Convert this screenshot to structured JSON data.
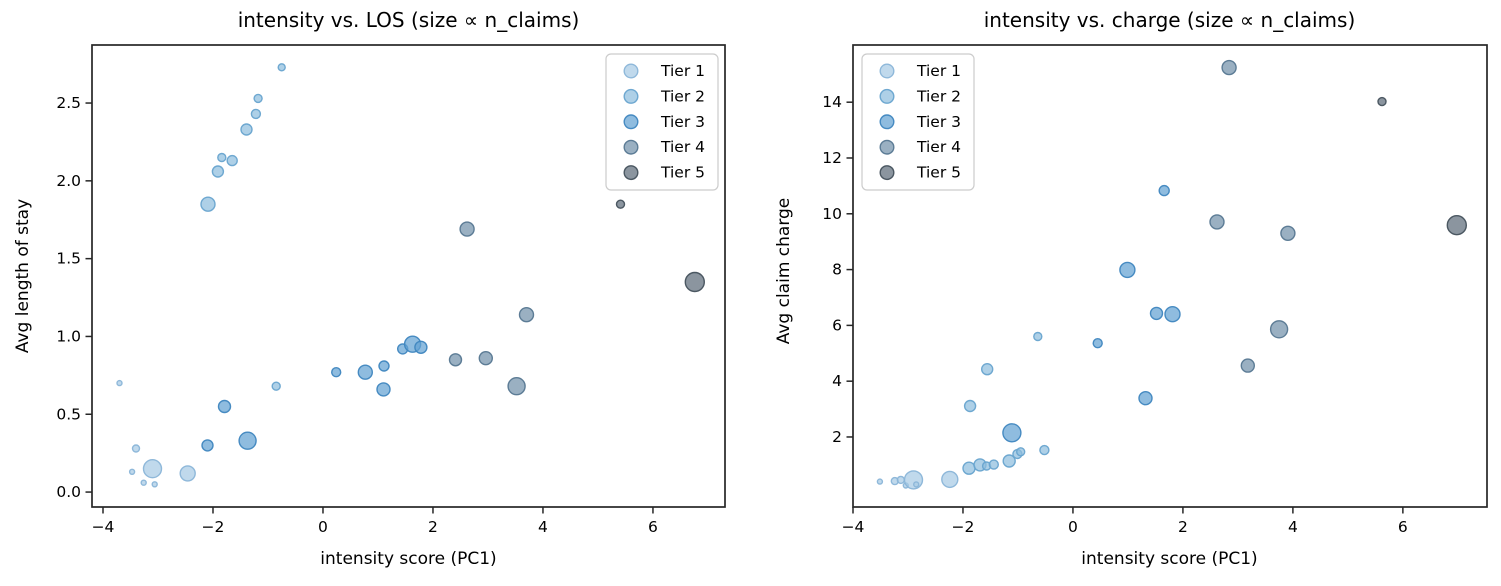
{
  "figure": {
    "background": "#ffffff",
    "text_color": "#000000",
    "spine_color": "#262626"
  },
  "tiers": {
    "1": {
      "label": "Tier 1",
      "fill": "#a8cbe5",
      "edge": "#8ab5d8"
    },
    "2": {
      "label": "Tier 2",
      "fill": "#8fbede",
      "edge": "#68a4cf"
    },
    "3": {
      "label": "Tier 3",
      "fill": "#64a2d2",
      "edge": "#3f86bf"
    },
    "4": {
      "label": "Tier 4",
      "fill": "#7392ab",
      "edge": "#567791"
    },
    "5": {
      "label": "Tier 5",
      "fill": "#5e6c7a",
      "edge": "#45515c"
    }
  },
  "chart_data": [
    {
      "type": "scatter",
      "title": "intensity vs. LOS (size ∝ n_claims)",
      "xlabel": "intensity score (PC1)",
      "ylabel": "Avg length of stay",
      "xlim": [
        -4.2,
        7.31
      ],
      "ylim": [
        -0.096,
        2.873
      ],
      "xticks": [
        -4,
        -2,
        0,
        2,
        4,
        6
      ],
      "xtick_labels": [
        "−4",
        "−2",
        "0",
        "2",
        "4",
        "6"
      ],
      "yticks": [
        0,
        0.5,
        1,
        1.5,
        2,
        2.5
      ],
      "ytick_labels": [
        "0.0",
        "0.5",
        "1.0",
        "1.5",
        "2.0",
        "2.5"
      ],
      "grid": false,
      "legend": {
        "position": "top-right",
        "entries": [
          "Tier 1",
          "Tier 2",
          "Tier 3",
          "Tier 4",
          "Tier 5"
        ]
      },
      "size_encoding": "size ∝ n_claims",
      "points": [
        {
          "x": -3.7,
          "y": 0.7,
          "r": 2.5,
          "tier": 1
        },
        {
          "x": -3.4,
          "y": 0.28,
          "r": 3.5,
          "tier": 1
        },
        {
          "x": -3.47,
          "y": 0.13,
          "r": 2.5,
          "tier": 1
        },
        {
          "x": -3.26,
          "y": 0.06,
          "r": 2.5,
          "tier": 1
        },
        {
          "x": -3.06,
          "y": 0.05,
          "r": 2.5,
          "tier": 1
        },
        {
          "x": -3.1,
          "y": 0.15,
          "r": 9.0,
          "tier": 1
        },
        {
          "x": -2.46,
          "y": 0.12,
          "r": 7.5,
          "tier": 1
        },
        {
          "x": -2.09,
          "y": 1.85,
          "r": 7.0,
          "tier": 2
        },
        {
          "x": -1.91,
          "y": 2.06,
          "r": 5.5,
          "tier": 2
        },
        {
          "x": -1.84,
          "y": 2.15,
          "r": 4.0,
          "tier": 2
        },
        {
          "x": -1.65,
          "y": 2.13,
          "r": 5.0,
          "tier": 2
        },
        {
          "x": -1.39,
          "y": 2.33,
          "r": 5.5,
          "tier": 2
        },
        {
          "x": -1.22,
          "y": 2.43,
          "r": 4.5,
          "tier": 2
        },
        {
          "x": -1.18,
          "y": 2.53,
          "r": 4.0,
          "tier": 2
        },
        {
          "x": -0.75,
          "y": 2.73,
          "r": 3.5,
          "tier": 2
        },
        {
          "x": -0.85,
          "y": 0.68,
          "r": 4.0,
          "tier": 2
        },
        {
          "x": -2.1,
          "y": 0.3,
          "r": 5.5,
          "tier": 3
        },
        {
          "x": -1.79,
          "y": 0.55,
          "r": 6.0,
          "tier": 3
        },
        {
          "x": -1.37,
          "y": 0.33,
          "r": 8.5,
          "tier": 3
        },
        {
          "x": 0.24,
          "y": 0.77,
          "r": 4.5,
          "tier": 3
        },
        {
          "x": 0.77,
          "y": 0.77,
          "r": 7.0,
          "tier": 3
        },
        {
          "x": 1.1,
          "y": 0.66,
          "r": 6.5,
          "tier": 3
        },
        {
          "x": 1.11,
          "y": 0.81,
          "r": 5.0,
          "tier": 3
        },
        {
          "x": 1.45,
          "y": 0.92,
          "r": 5.0,
          "tier": 3
        },
        {
          "x": 1.63,
          "y": 0.95,
          "r": 8.0,
          "tier": 3
        },
        {
          "x": 1.78,
          "y": 0.93,
          "r": 6.0,
          "tier": 3
        },
        {
          "x": 2.41,
          "y": 0.85,
          "r": 6.0,
          "tier": 4
        },
        {
          "x": 2.96,
          "y": 0.86,
          "r": 6.5,
          "tier": 4
        },
        {
          "x": 3.52,
          "y": 0.68,
          "r": 8.5,
          "tier": 4
        },
        {
          "x": 2.62,
          "y": 1.69,
          "r": 7.0,
          "tier": 4
        },
        {
          "x": 3.7,
          "y": 1.14,
          "r": 7.0,
          "tier": 4
        },
        {
          "x": 5.41,
          "y": 1.85,
          "r": 4.0,
          "tier": 5
        },
        {
          "x": 6.76,
          "y": 1.35,
          "r": 9.5,
          "tier": 5
        }
      ]
    },
    {
      "type": "scatter",
      "title": "intensity vs. charge (size ∝ n_claims)",
      "xlabel": "intensity score (PC1)",
      "ylabel": "Avg claim charge",
      "xlim": [
        -4.0,
        7.53
      ],
      "ylim": [
        -0.51,
        16.05
      ],
      "xticks": [
        -4,
        -2,
        0,
        2,
        4,
        6
      ],
      "xtick_labels": [
        "−4",
        "−2",
        "0",
        "2",
        "4",
        "6"
      ],
      "yticks": [
        2,
        4,
        6,
        8,
        10,
        12,
        14
      ],
      "ytick_labels": [
        "2",
        "4",
        "6",
        "8",
        "10",
        "12",
        "14"
      ],
      "grid": false,
      "legend": {
        "position": "top-left",
        "entries": [
          "Tier 1",
          "Tier 2",
          "Tier 3",
          "Tier 4",
          "Tier 5"
        ]
      },
      "size_encoding": "size ∝ n_claims",
      "points": [
        {
          "x": -3.51,
          "y": 0.4,
          "r": 2.5,
          "tier": 1
        },
        {
          "x": -3.24,
          "y": 0.42,
          "r": 3.5,
          "tier": 1
        },
        {
          "x": -3.13,
          "y": 0.46,
          "r": 3.5,
          "tier": 1
        },
        {
          "x": -3.04,
          "y": 0.26,
          "r": 2.5,
          "tier": 1
        },
        {
          "x": -2.9,
          "y": 0.46,
          "r": 9.0,
          "tier": 1
        },
        {
          "x": -2.85,
          "y": 0.3,
          "r": 2.5,
          "tier": 1
        },
        {
          "x": -2.24,
          "y": 0.48,
          "r": 8.0,
          "tier": 1
        },
        {
          "x": -1.89,
          "y": 0.88,
          "r": 6.0,
          "tier": 2
        },
        {
          "x": -1.69,
          "y": 1.0,
          "r": 6.0,
          "tier": 2
        },
        {
          "x": -1.57,
          "y": 0.96,
          "r": 4.0,
          "tier": 2
        },
        {
          "x": -1.44,
          "y": 1.01,
          "r": 4.5,
          "tier": 2
        },
        {
          "x": -1.16,
          "y": 1.14,
          "r": 6.0,
          "tier": 2
        },
        {
          "x": -1.01,
          "y": 1.39,
          "r": 4.5,
          "tier": 2
        },
        {
          "x": -0.95,
          "y": 1.47,
          "r": 4.0,
          "tier": 2
        },
        {
          "x": -0.52,
          "y": 1.53,
          "r": 4.5,
          "tier": 2
        },
        {
          "x": -1.87,
          "y": 3.11,
          "r": 5.5,
          "tier": 2
        },
        {
          "x": -1.56,
          "y": 4.43,
          "r": 5.5,
          "tier": 2
        },
        {
          "x": -0.64,
          "y": 5.6,
          "r": 4.0,
          "tier": 2
        },
        {
          "x": -1.11,
          "y": 2.15,
          "r": 9.0,
          "tier": 3
        },
        {
          "x": 0.45,
          "y": 5.36,
          "r": 4.5,
          "tier": 3
        },
        {
          "x": 1.32,
          "y": 3.39,
          "r": 6.5,
          "tier": 3
        },
        {
          "x": 1.52,
          "y": 6.43,
          "r": 6.0,
          "tier": 3
        },
        {
          "x": 1.81,
          "y": 6.4,
          "r": 7.5,
          "tier": 3
        },
        {
          "x": 1.66,
          "y": 10.83,
          "r": 5.0,
          "tier": 3
        },
        {
          "x": 0.99,
          "y": 7.99,
          "r": 7.5,
          "tier": 3
        },
        {
          "x": 2.84,
          "y": 15.24,
          "r": 7.0,
          "tier": 4
        },
        {
          "x": 2.62,
          "y": 9.71,
          "r": 7.0,
          "tier": 4
        },
        {
          "x": 3.91,
          "y": 9.3,
          "r": 7.0,
          "tier": 4
        },
        {
          "x": 3.18,
          "y": 4.56,
          "r": 6.5,
          "tier": 4
        },
        {
          "x": 3.75,
          "y": 5.86,
          "r": 8.5,
          "tier": 4
        },
        {
          "x": 5.62,
          "y": 14.02,
          "r": 4.0,
          "tier": 5
        },
        {
          "x": 6.98,
          "y": 9.59,
          "r": 9.5,
          "tier": 5
        }
      ]
    }
  ]
}
